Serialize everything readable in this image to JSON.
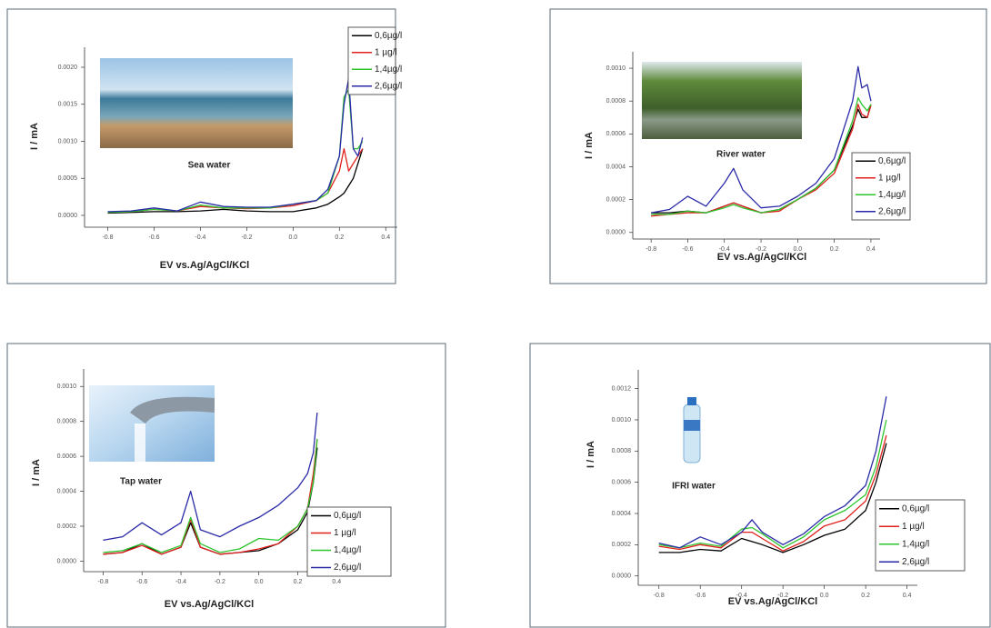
{
  "chart_data": [
    {
      "type": "line",
      "annotation": "Sea water",
      "xlabel": "EV vs.Ag/AgCl/KCl",
      "ylabel": "I / mA",
      "x": [
        -0.8,
        -0.7,
        -0.6,
        -0.5,
        -0.4,
        -0.3,
        -0.2,
        -0.1,
        0,
        0.1,
        0.15,
        0.2,
        0.22,
        0.24,
        0.26,
        0.28,
        0.3
      ],
      "series": [
        {
          "name": "0,6µg/l",
          "color": "#000000",
          "values": [
            3e-05,
            4e-05,
            5e-05,
            5e-05,
            6e-05,
            8e-05,
            6e-05,
            5e-05,
            5e-05,
            0.0001,
            0.00015,
            0.00025,
            0.0003,
            0.0004,
            0.0005,
            0.0007,
            0.0009
          ]
        },
        {
          "name": "1 µg/l",
          "color": "#e0201c",
          "values": [
            4e-05,
            5e-05,
            8e-05,
            6e-05,
            0.00012,
            0.0001,
            9e-05,
            0.0001,
            0.00013,
            0.0002,
            0.0003,
            0.0006,
            0.0009,
            0.0006,
            0.0007,
            0.0008,
            0.0009
          ]
        },
        {
          "name": "1,4µg/l",
          "color": "#2ec42e",
          "values": [
            4e-05,
            5e-05,
            8e-05,
            6e-05,
            0.00014,
            0.0001,
            0.0001,
            0.0001,
            0.00015,
            0.0002,
            0.0003,
            0.0008,
            0.0016,
            0.0017,
            0.0009,
            0.0009,
            0.001
          ]
        },
        {
          "name": "2,6µg/l",
          "color": "#2a2aa8",
          "values": [
            5e-05,
            6e-05,
            0.0001,
            6e-05,
            0.00018,
            0.00012,
            0.00011,
            0.00011,
            0.00015,
            0.0002,
            0.00035,
            0.0008,
            0.0015,
            0.00185,
            0.0009,
            0.0008,
            0.00105
          ]
        }
      ],
      "xlim": [
        -0.9,
        0.45
      ],
      "ylim": [
        -0.00016,
        0.00227
      ],
      "xticks": [
        -0.8,
        -0.6,
        -0.4,
        -0.2,
        {
          "value": 0,
          "label": "0.0"
        },
        0.2,
        0.4
      ],
      "yticks": [
        {
          "value": 0,
          "label": "0.0000"
        },
        0.0005,
        {
          "value": 0.001,
          "label": "0.0010"
        },
        0.0015,
        {
          "value": 0.002,
          "label": "0.0020"
        }
      ]
    },
    {
      "type": "line",
      "annotation": "River water",
      "xlabel": "EV vs.Ag/AgCl/KCl",
      "ylabel": "I / mA",
      "x": [
        -0.8,
        -0.7,
        -0.6,
        -0.5,
        -0.4,
        -0.35,
        -0.3,
        -0.2,
        -0.1,
        0,
        0.1,
        0.2,
        0.3,
        0.33,
        0.35,
        0.38,
        0.4
      ],
      "series": [
        {
          "name": "0,6µg/l",
          "color": "#000000",
          "values": [
            0.00012,
            0.00012,
            0.00013,
            0.00012,
            0.00016,
            0.00018,
            0.00016,
            0.00012,
            0.00014,
            0.0002,
            0.00027,
            0.00038,
            0.00065,
            0.00075,
            0.0007,
            0.0007,
            0.00078
          ]
        },
        {
          "name": "1 µg/l",
          "color": "#e0201c",
          "values": [
            0.0001,
            0.00011,
            0.00012,
            0.00012,
            0.00016,
            0.00018,
            0.00016,
            0.00012,
            0.00013,
            0.0002,
            0.00026,
            0.00036,
            0.00063,
            0.00078,
            0.00072,
            0.0007,
            0.00077
          ]
        },
        {
          "name": "1,4µg/l",
          "color": "#2ec42e",
          "values": [
            0.00011,
            0.00011,
            0.00013,
            0.00012,
            0.00015,
            0.00017,
            0.00015,
            0.00012,
            0.00014,
            0.0002,
            0.00027,
            0.00038,
            0.00068,
            0.00082,
            0.00078,
            0.00074,
            0.00078
          ]
        },
        {
          "name": "2,6µg/l",
          "color": "#2a2aa8",
          "values": [
            0.00012,
            0.00014,
            0.00022,
            0.00016,
            0.0003,
            0.00039,
            0.00026,
            0.00015,
            0.00016,
            0.00022,
            0.0003,
            0.00045,
            0.0008,
            0.00101,
            0.00088,
            0.0009,
            0.0008
          ]
        }
      ],
      "xlim": [
        -0.9,
        0.45
      ],
      "ylim": [
        -4e-05,
        0.0011
      ],
      "xticks": [
        -0.8,
        -0.6,
        -0.4,
        -0.2,
        {
          "value": 0,
          "label": "0.0"
        },
        0.2,
        0.4
      ],
      "yticks": [
        {
          "value": 0,
          "label": "0.0000"
        },
        0.0002,
        0.0004,
        0.0006,
        0.0008,
        {
          "value": 0.001,
          "label": "0.0010"
        }
      ]
    },
    {
      "type": "line",
      "annotation": "Tap water",
      "xlabel": "EV vs.Ag/AgCl/KCl",
      "ylabel": "I / mA",
      "x": [
        -0.8,
        -0.7,
        -0.6,
        -0.5,
        -0.4,
        -0.35,
        -0.3,
        -0.2,
        -0.1,
        0,
        0.1,
        0.2,
        0.25,
        0.28,
        0.3
      ],
      "series": [
        {
          "name": "0,6µg/l",
          "color": "#000000",
          "values": [
            4e-05,
            5e-05,
            0.0001,
            4e-05,
            8e-05,
            0.00022,
            8e-05,
            4e-05,
            5e-05,
            6e-05,
            0.0001,
            0.00018,
            0.00028,
            0.00045,
            0.00065
          ]
        },
        {
          "name": "1 µg/l",
          "color": "#e0201c",
          "values": [
            4e-05,
            5e-05,
            9e-05,
            4e-05,
            8e-05,
            0.00024,
            8e-05,
            4e-05,
            5e-05,
            7e-05,
            0.0001,
            0.0002,
            0.0003,
            0.0005,
            0.0007
          ]
        },
        {
          "name": "1,4µg/l",
          "color": "#2ec42e",
          "values": [
            5e-05,
            6e-05,
            0.0001,
            5e-05,
            9e-05,
            0.00025,
            0.0001,
            5e-05,
            7e-05,
            0.00013,
            0.00012,
            0.0002,
            0.0003,
            0.00045,
            0.0007
          ]
        },
        {
          "name": "2,6µg/l",
          "color": "#2a2aa8",
          "values": [
            0.00012,
            0.00014,
            0.00022,
            0.00015,
            0.00022,
            0.0004,
            0.00018,
            0.00014,
            0.0002,
            0.00025,
            0.00032,
            0.00042,
            0.0005,
            0.00062,
            0.00085
          ]
        }
      ],
      "xlim": [
        -0.9,
        0.45
      ],
      "ylim": [
        -6e-05,
        0.0011
      ],
      "xticks": [
        -0.8,
        -0.6,
        -0.4,
        -0.2,
        {
          "value": 0,
          "label": "0.0"
        },
        0.2,
        0.4
      ],
      "yticks": [
        {
          "value": 0,
          "label": "0.0000"
        },
        0.0002,
        0.0004,
        0.0006,
        0.0008,
        {
          "value": 0.001,
          "label": "0.0010"
        }
      ]
    },
    {
      "type": "line",
      "annotation": "IFRI water",
      "xlabel": "EV vs.Ag/AgCl/KCl",
      "ylabel": "I / mA",
      "x": [
        -0.8,
        -0.7,
        -0.6,
        -0.5,
        -0.4,
        -0.35,
        -0.3,
        -0.2,
        -0.1,
        0,
        0.1,
        0.2,
        0.25,
        0.3
      ],
      "series": [
        {
          "name": "0,6µg/l",
          "color": "#000000",
          "values": [
            0.00015,
            0.00015,
            0.00017,
            0.00016,
            0.00024,
            0.00022,
            0.0002,
            0.00015,
            0.0002,
            0.00026,
            0.0003,
            0.00042,
            0.0006,
            0.00085
          ]
        },
        {
          "name": "1 µg/l",
          "color": "#e0201c",
          "values": [
            0.00019,
            0.00017,
            0.0002,
            0.00018,
            0.00028,
            0.00028,
            0.00024,
            0.00016,
            0.00022,
            0.00032,
            0.00036,
            0.00048,
            0.00065,
            0.0009
          ]
        },
        {
          "name": "1,4µg/l",
          "color": "#2ec42e",
          "values": [
            0.0002,
            0.00018,
            0.00021,
            0.00019,
            0.0003,
            0.00031,
            0.00027,
            0.00018,
            0.00025,
            0.00036,
            0.00042,
            0.00052,
            0.0007,
            0.001
          ]
        },
        {
          "name": "2,6µg/l",
          "color": "#2a2aa8",
          "values": [
            0.00021,
            0.00018,
            0.00025,
            0.0002,
            0.00028,
            0.00036,
            0.00028,
            0.0002,
            0.00027,
            0.00038,
            0.00045,
            0.00058,
            0.0008,
            0.00115
          ]
        }
      ],
      "xlim": [
        -0.9,
        0.45
      ],
      "ylim": [
        -6e-05,
        0.00132
      ],
      "xticks": [
        -0.8,
        -0.6,
        -0.4,
        -0.2,
        {
          "value": 0,
          "label": "0.0"
        },
        0.2,
        0.4
      ],
      "yticks": [
        {
          "value": 0,
          "label": "0.0000"
        },
        0.0002,
        0.0004,
        0.0006,
        0.0008,
        {
          "value": 0.001,
          "label": "0.0010"
        },
        0.0012
      ]
    }
  ]
}
